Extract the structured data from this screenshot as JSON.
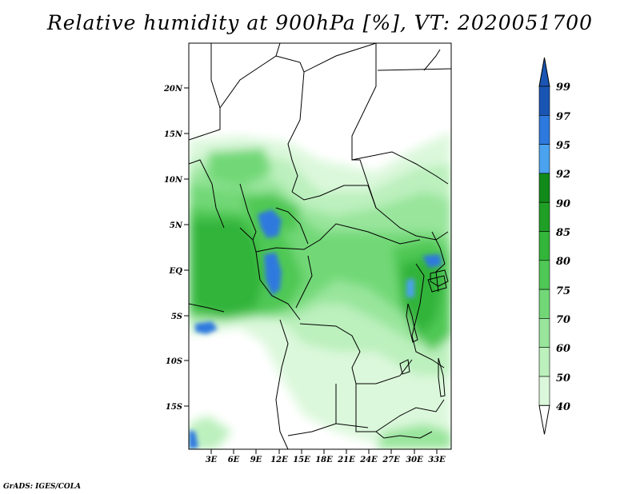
{
  "title": "Relative humidity at 900hPa [%], VT: 2020051700",
  "credit": "GrADS: IGES/COLA",
  "map": {
    "lat_ticks": [
      "20N",
      "15N",
      "10N",
      "5N",
      "EQ",
      "5S",
      "10S",
      "15S"
    ],
    "lon_ticks": [
      "3E",
      "6E",
      "9E",
      "12E",
      "15E",
      "18E",
      "21E",
      "24E",
      "27E",
      "30E",
      "33E"
    ]
  },
  "colorbar": {
    "labels": [
      "99",
      "97",
      "95",
      "92",
      "90",
      "85",
      "80",
      "75",
      "70",
      "60",
      "50",
      "40"
    ],
    "colors": {
      "c99": "#1a55b4",
      "c97": "#2d79de",
      "c95": "#4ba2ee",
      "c92": "#118a1a",
      "c90": "#1f9f26",
      "c85": "#33b43a",
      "c80": "#4fc855",
      "c75": "#72d877",
      "c70": "#98e59b",
      "c60": "#bcf0bd",
      "c50": "#dcf8dc",
      "c40": "#f4fef4"
    }
  }
}
